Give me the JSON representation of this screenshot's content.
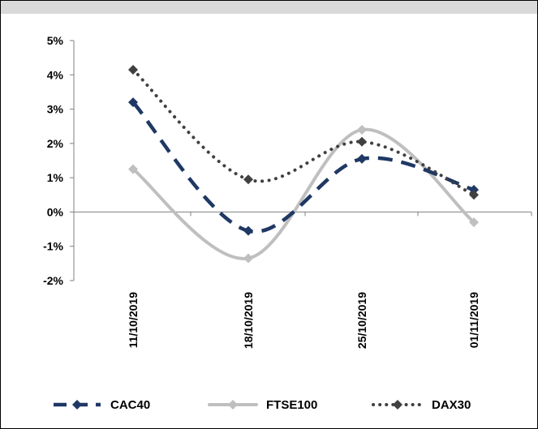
{
  "chart_data": {
    "type": "line",
    "title": "",
    "xlabel": "",
    "ylabel": "",
    "categories": [
      "11/10/2019",
      "18/10/2019",
      "25/10/2019",
      "01/11/2019"
    ],
    "ylim": [
      -2,
      5
    ],
    "yticks": [
      -2,
      -1,
      0,
      1,
      2,
      3,
      4,
      5
    ],
    "ytick_labels": [
      "-2%",
      "-1%",
      "0%",
      "1%",
      "2%",
      "3%",
      "4%",
      "5%"
    ],
    "grid": false,
    "legend_position": "bottom",
    "series": [
      {
        "name": "CAC40",
        "values": [
          3.2,
          -0.55,
          1.55,
          0.65
        ],
        "color": "#1f3864",
        "style": "dashed",
        "marker": "diamond"
      },
      {
        "name": "FTSE100",
        "values": [
          1.25,
          -1.35,
          2.4,
          -0.3
        ],
        "color": "#bfbfbf",
        "style": "solid",
        "marker": "diamond"
      },
      {
        "name": "DAX30",
        "values": [
          4.15,
          0.95,
          2.05,
          0.5
        ],
        "color": "#404040",
        "style": "dotted",
        "marker": "diamond"
      }
    ]
  }
}
